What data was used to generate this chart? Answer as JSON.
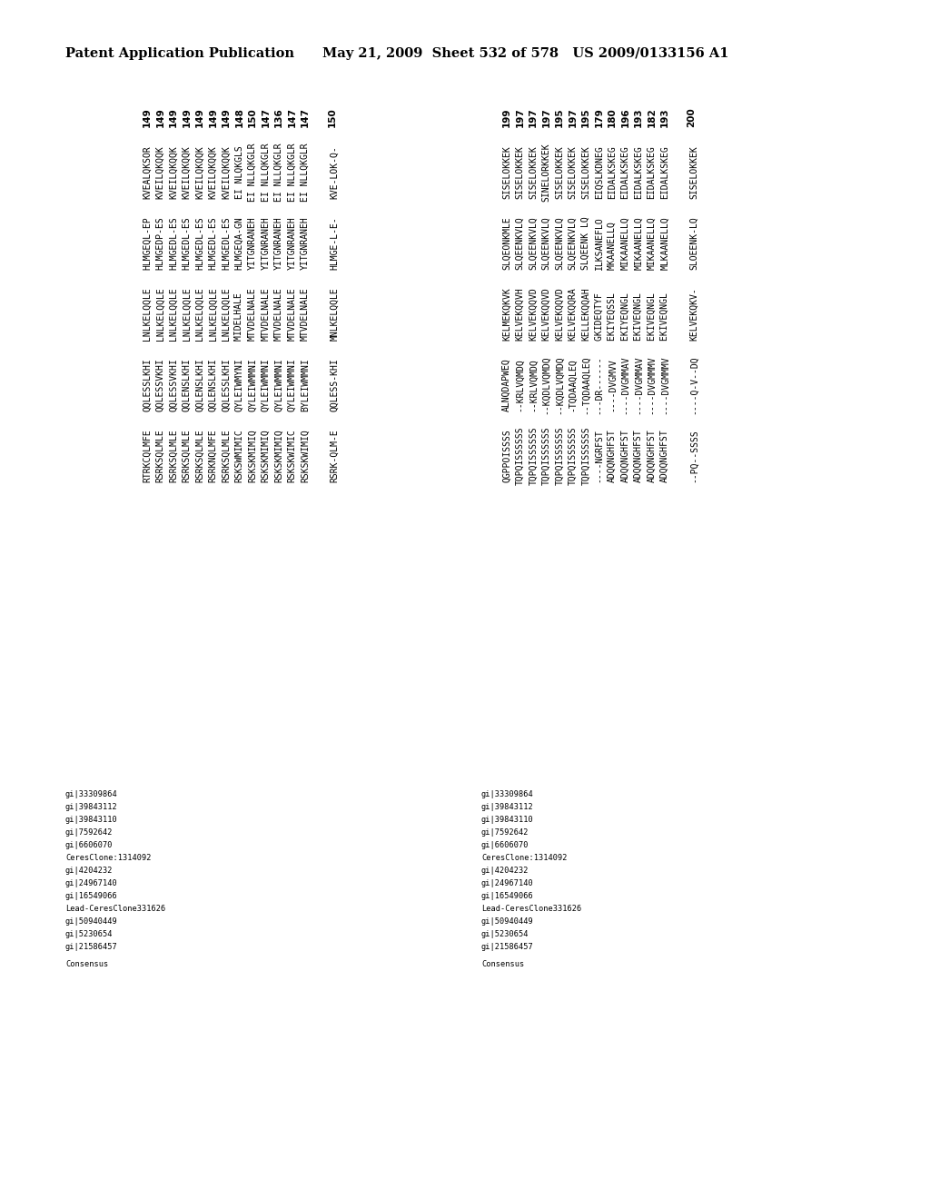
{
  "header_left": "Patent Application Publication",
  "header_right": "May 21, 2009  Sheet 532 of 578   US 2009/0133156 A1",
  "header_fontsize": 10.5,
  "top_left_numbers": [
    "149",
    "149",
    "149",
    "149",
    "149",
    "149",
    "149",
    "148",
    "150",
    "147",
    "136",
    "147",
    "147"
  ],
  "top_right_numbers": [
    "199",
    "197",
    "197",
    "197",
    "195",
    "197",
    "195",
    "179",
    "180",
    "196",
    "193",
    "182",
    "193"
  ],
  "consensus_num_left": "150",
  "consensus_num_right": "200",
  "left_block_cols": [
    [
      "KVEALQKSOR",
      "KVEI LQKQQK",
      "KVEI LQKQQK",
      "KVEI LQKQQK",
      "KVEI LQKQQK",
      "KVEI LQKQQK",
      "KVEI LQKQQK",
      "EI NLQKGLS",
      "EI NLLQKGLR",
      "EI NLLQKGLR",
      "EI NLLQKGLR",
      "EI NLLQKGLR",
      "EI NLLQKGLR"
    ],
    [
      "HLMGEQL-EP",
      "HLMGEDP-ES",
      "HLMGEDL-ES",
      "HLMGEDL-ES",
      "HLMGEDL-ES",
      "HLMGEDL-ES",
      "HLMGEDL-ES",
      "HLMGEQA-GN",
      "YI TGNRANEH",
      "YI TGNRANEH",
      "YI TGNRANEH",
      "YI TGNRANEH",
      "YI TGNRANEH"
    ],
    [
      "LNLKELQQLE",
      "LNLKELQQLE",
      "LNLKELQQLE",
      "LNLKELQQLE",
      "LNLKELQQLE",
      "LNLKELQQLE",
      "LNLKELQQLE",
      "MI DELHALE",
      "MTVDELNALE",
      "MTVDELNALE",
      "MTVDELNALE",
      "MTVDELNALE",
      "MTVDELNALE"
    ],
    [
      "QQLESSLKHI",
      "QQLESSVKHI",
      "QQLESSVKHI",
      "QQLENSLKHI",
      "QQLENSLKHI",
      "QQLENSLKHI",
      "QQLESSLKHI",
      "QYLEIWMYNI",
      "QYLEIWMMNI",
      "QYLEIWMMNI",
      "QYLEIWMMNI",
      "QYLEIWMMNI",
      "BYLEIWMMNI"
    ],
    [
      "RTRKCQLMFE",
      "RSRKSQLMLE",
      "RSRKSQLMLE",
      "RSRKSQLMLE",
      "RSRKSQLMLE",
      "RSRKNQLMFE",
      "RSRKSQLMLE",
      "RSKSWMIMIC",
      "RSKSKMIMIQ",
      "RSKSKMIMIQ",
      "RSKSKMIMIQ",
      "RSKSKWIMIC",
      "RSKSKWIMIQ"
    ]
  ],
  "left_consensus_cols": [
    "KVE-LOK-Q-",
    "HLMGE-L-E-",
    "MNLKELQQLE",
    "QQLESS-KHI",
    "RSRK-QLM-E"
  ],
  "right_block_cols": [
    [
      "SI SELOKKEK",
      "SI SELOKKEK",
      "SI SELOKKEK",
      "SI NELORKKEK",
      "SI SELOKKEK",
      "SI SELOKKEK",
      "SI SELOKKEK",
      "EI QSLKDNEG",
      "EI DALKSKEG",
      "EI DALKSKEG",
      "EI DALKSKEG",
      "EI DALKSKEG",
      "EI DALKSKEG"
    ],
    [
      "SLQEONKMLE",
      "SLQEENKVLQ",
      "SLQEENKVLQ",
      "SLQEENKVLQ",
      "SLQEENKVLQ",
      "SLQEENKVLQ",
      "SLQEENK LQ",
      "IL KSANEFLO",
      "M KAANELLQ",
      "MI KAANELLQ",
      "MI KAANELLQ",
      "MI KAANELLQ",
      "ML KAANELLQ"
    ],
    [
      "KELMEKQKVK",
      "KELVEKQQVH",
      "KELVEKQQVD",
      "KELVEKQQVD",
      "KELVEKQQVD",
      "KELVEKQQRA",
      "KELLEKQQAH",
      "GKI DEQTYF",
      "EKI YEQSSL",
      "EKI YEQNGL",
      "EKI VEQNGL",
      "EKI VEQNGL",
      "EKI VEQNGL"
    ],
    [
      "ALNQDAPWEQ",
      "--KRLVQMDQ",
      "--KRLVQMDQ",
      "--KQDLVQMDQ",
      "--KQDLVQMDQ",
      "-TQDAAQLEQ",
      "--TQDAAQLEQ",
      "---DR------",
      "----DVGMVV",
      "----DVGMMAV",
      "----DVGMMAV",
      "----DVGMMMV",
      "----DVGMMMV"
    ],
    [
      "QGPPOISSSS",
      "TQPQISSSSSS",
      "TQPQISSSSSS",
      "TQPQISSSSSS",
      "TQPQISSSSSS",
      "TQPQISSSSSS",
      "TQPQISSSSSS",
      "----NGRFST",
      "ADQQNGHFST",
      "ADQQNGHFST",
      "ADQQNGHFST",
      "ADQQNGHFST",
      "ADQQNGHFST"
    ]
  ],
  "right_consensus_cols": [
    "SI SELOKKEK",
    "SLOEENK-LQ",
    "KELVEKQKV-",
    "----Q-V--DQ",
    "--PQ--SSSS"
  ],
  "left_labels": [
    "gi|33309864",
    "gi|39843112",
    "gi|39843110",
    "gi|7592642",
    "gi|6606070",
    "CeresClone:1314092",
    "gi|4204232",
    "gi|24967140",
    "gi|16549066",
    "Lead-CeresClone331626",
    "gi|50940449",
    "gi|5230654",
    "gi|21586457"
  ],
  "right_labels": [
    "gi|33309864",
    "gi|39843112",
    "gi|39843110",
    "gi|7592642",
    "gi|6606070",
    "CeresClone:1314092",
    "gi|4204232",
    "gi|24967140",
    "gi|16549066",
    "Lead-CeresClone331626",
    "gi|50940449",
    "gi|5230654",
    "gi|21586457"
  ],
  "left_consensus_seqs": [
    "KVE-LOK-Q-",
    "HLMGE-L-E-",
    "MNLKELQQLE",
    "QQLESS-KHI",
    "RSRK-QLM-E"
  ],
  "right_consensus_seqs": [
    "SI SELOKKEK",
    "SLOEENK-LQ",
    "KELVEKQKV-",
    "----Q-V--DQ",
    "--PQ--SSSS"
  ],
  "left_consensus_labels": [
    "KVE-LOK-Q-",
    "HLMGE-L-E-",
    "MNLKELQQLE",
    "QQLESS-KHI",
    "RSRK-QLM-E"
  ],
  "consensus_label_left": "KVE-LOK-Q--  HLMGE-L-E-  MNLKELQQLE  QQLESS-KHI  RSRK-QLM-E",
  "consensus_label_right": "SI SELOKKEK  SLOEENK-LQ  KELVEKQKV-  ---Q-V--DQ  --PQ--SSSS"
}
